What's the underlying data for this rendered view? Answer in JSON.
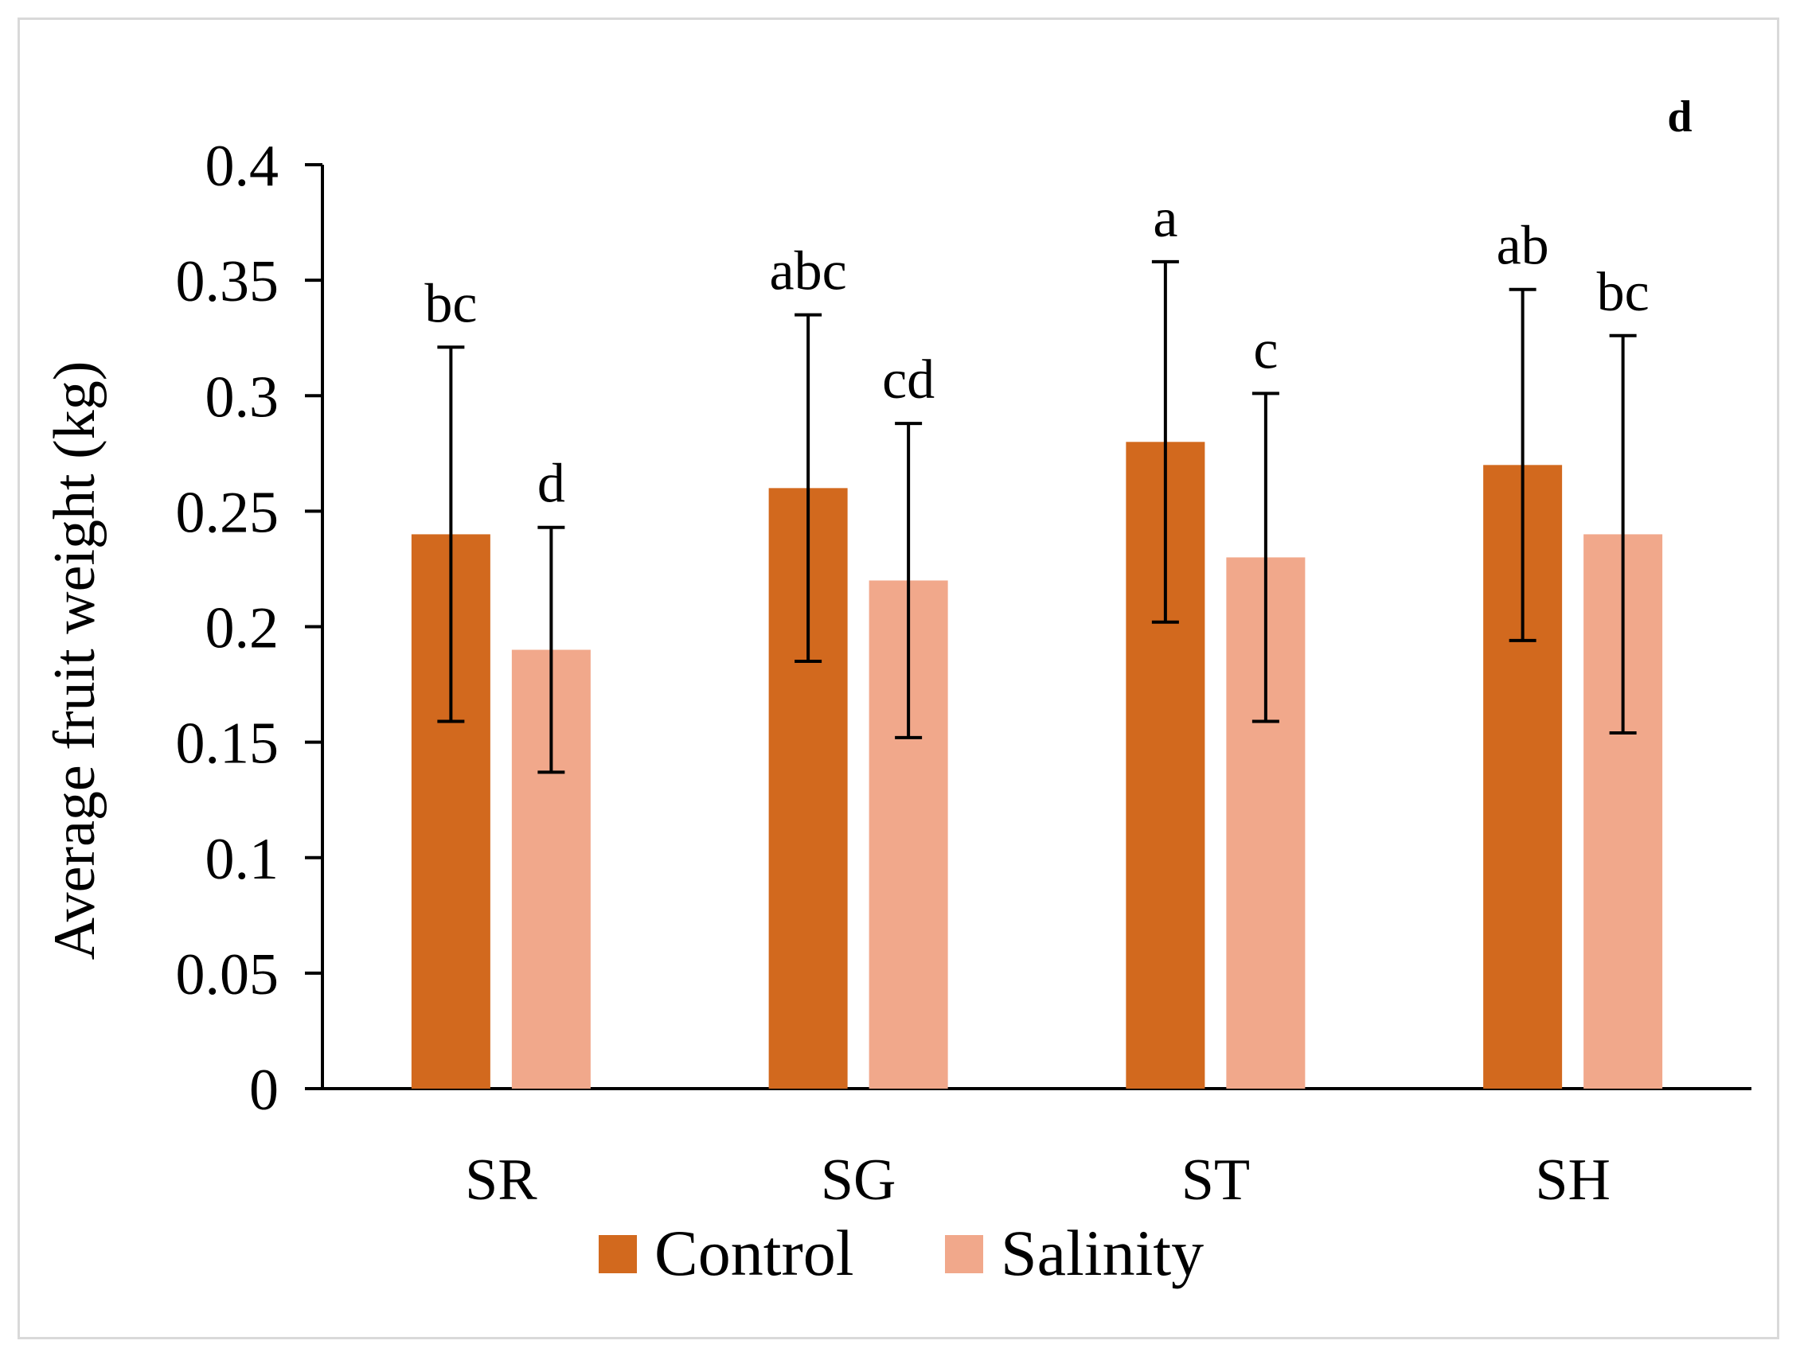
{
  "chart_data": {
    "type": "bar",
    "panel_label": "d",
    "ylabel": "Average fruit weight (kg)",
    "xlabel": "",
    "ylim": [
      0,
      0.4
    ],
    "yticks": [
      0,
      0.05,
      0.1,
      0.15,
      0.2,
      0.25,
      0.3,
      0.35,
      0.4
    ],
    "ytick_labels": [
      "0",
      "0.05",
      "0.1",
      "0.15",
      "0.2",
      "0.25",
      "0.3",
      "0.35",
      "0.4"
    ],
    "categories": [
      "SR",
      "SG",
      "ST",
      "SH"
    ],
    "series": [
      {
        "name": "Control",
        "color": "#d2691e",
        "values": [
          0.24,
          0.26,
          0.28,
          0.27
        ],
        "errors": [
          0.081,
          0.075,
          0.078,
          0.076
        ],
        "letters": [
          "bc",
          "abc",
          "a",
          "ab"
        ]
      },
      {
        "name": "Salinity",
        "color": "#f1a88b",
        "values": [
          0.19,
          0.22,
          0.23,
          0.24
        ],
        "errors": [
          0.053,
          0.068,
          0.071,
          0.086
        ],
        "letters": [
          "d",
          "cd",
          "c",
          "bc"
        ]
      }
    ],
    "legend_position": "bottom-center",
    "grid": false
  }
}
